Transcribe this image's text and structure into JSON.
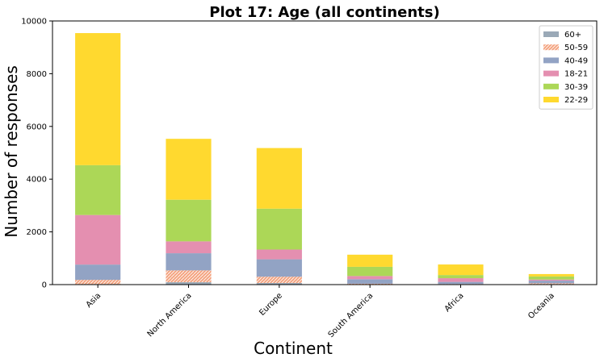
{
  "chart_data": {
    "type": "bar",
    "stacked": true,
    "title": "Plot 17: Age (all continents)",
    "xlabel": "Continent",
    "ylabel": "Number of responses",
    "ylim": [
      0,
      10000
    ],
    "yticks": [
      0,
      2000,
      4000,
      6000,
      8000,
      10000
    ],
    "grid": false,
    "legend_position": "top-right",
    "categories": [
      "Asia",
      "North America",
      "Europe",
      "South America",
      "Africa",
      "Oceania"
    ],
    "series": [
      {
        "name": "60+",
        "color": "#9aa9b7",
        "values": [
          20,
          90,
          60,
          5,
          3,
          20
        ],
        "hatch": false
      },
      {
        "name": "50-59",
        "color": "#f4a582",
        "values": [
          160,
          450,
          240,
          30,
          20,
          30
        ],
        "hatch": true
      },
      {
        "name": "40-49",
        "color": "#92a3c4",
        "values": [
          580,
          650,
          660,
          170,
          80,
          100
        ],
        "hatch": false
      },
      {
        "name": "18-21",
        "color": "#e48fb0",
        "values": [
          1880,
          450,
          370,
          120,
          140,
          40
        ],
        "hatch": false
      },
      {
        "name": "30-39",
        "color": "#acd757",
        "values": [
          1890,
          1580,
          1550,
          350,
          120,
          120
        ],
        "hatch": false
      },
      {
        "name": "22-29",
        "color": "#ffd92f",
        "values": [
          5010,
          2310,
          2300,
          460,
          400,
          90
        ],
        "hatch": false
      }
    ]
  }
}
